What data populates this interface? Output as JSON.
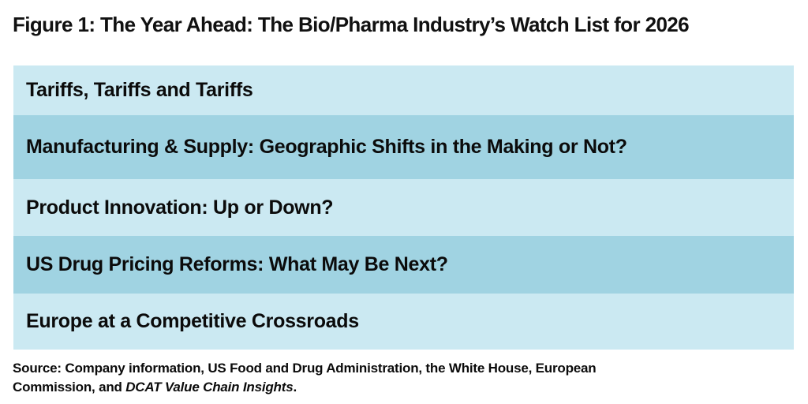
{
  "figure": {
    "title": "Figure 1: The Year Ahead: The Bio/Pharma Industry’s Watch List for 2026",
    "rows": [
      {
        "label": "Tariffs, Tariffs and Tariffs"
      },
      {
        "label": "Manufacturing & Supply: Geographic Shifts in the Making or Not?"
      },
      {
        "label": "Product Innovation: Up or Down?"
      },
      {
        "label": "US Drug Pricing Reforms: What May Be Next?"
      },
      {
        "label": "Europe at a Competitive Crossroads"
      }
    ],
    "source": {
      "line1": "Source: Company information, US Food and Drug Administration, the White House, European",
      "line2_prefix": "Commission, and ",
      "line2_italic": "DCAT Value Chain Insights",
      "line2_suffix": "."
    },
    "colors": {
      "row_light": "#CBE9F2",
      "row_dark": "#A0D3E2",
      "text": "#0B0B0B",
      "background": "#FFFFFF"
    }
  },
  "chart_data": {
    "type": "table",
    "title": "Figure 1: The Year Ahead: The Bio/Pharma Industry’s Watch List for 2026",
    "rows": [
      "Tariffs, Tariffs and Tariffs",
      "Manufacturing & Supply: Geographic Shifts in the Making or Not?",
      "Product Innovation: Up or Down?",
      "US Drug Pricing Reforms: What May Be Next?",
      "Europe at a Competitive Crossroads"
    ],
    "source_note": "Source: Company information, US Food and Drug Administration, the White House, European Commission, and DCAT Value Chain Insights.",
    "layout": {
      "row_alt_colors": [
        "#CBE9F2",
        "#A0D3E2"
      ],
      "legend": "none",
      "grid": "off"
    }
  }
}
